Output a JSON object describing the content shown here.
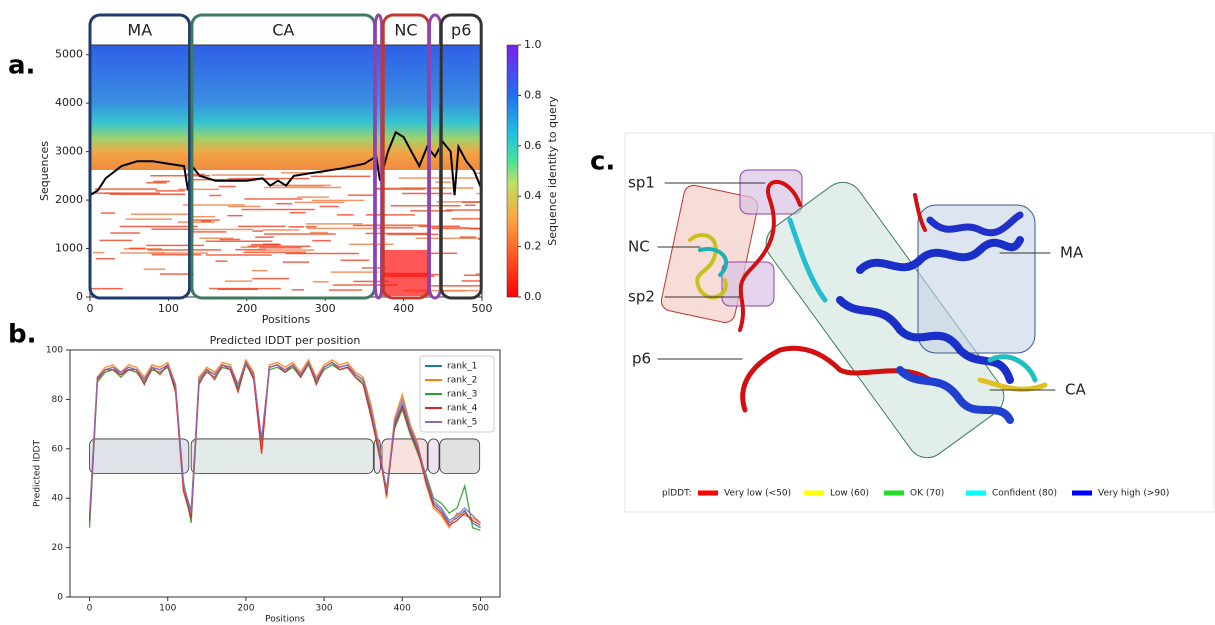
{
  "panel_labels": [
    "a.",
    "b.",
    "c."
  ],
  "chart_data": [
    {
      "type": "heatmap",
      "xlabel": "Positions",
      "ylabel": "Sequences",
      "xlim": [
        0,
        500
      ],
      "xticks": [
        0,
        100,
        200,
        300,
        400,
        500
      ],
      "ylim": [
        0,
        5200
      ],
      "yticks": [
        0,
        1000,
        2000,
        3000,
        4000,
        5000
      ],
      "colorbar": {
        "label": "Sequence identity to query",
        "lim": [
          0,
          1
        ],
        "ticks": [
          {
            "value": 0,
            "label": "0.0"
          },
          {
            "value": 0.2,
            "label": "0.2"
          },
          {
            "value": 0.4,
            "label": "0.4"
          },
          {
            "value": 0.6,
            "label": "0.6"
          },
          {
            "value": 0.8,
            "label": "0.8"
          },
          {
            "value": 1,
            "label": "1.0"
          }
        ]
      },
      "domains": [
        {
          "name": "MA",
          "start": 0,
          "end": 127,
          "color": "#1f3a6e",
          "label_color": "#6a6a9a"
        },
        {
          "name": "CA",
          "start": 130,
          "end": 363,
          "color": "#3d7a5e",
          "label_color": "#3d7a5e"
        },
        {
          "start": 364,
          "end": 372,
          "color": "#8e44ad"
        },
        {
          "name": "NC",
          "start": 374,
          "end": 432,
          "color": "#c0392b",
          "label_color": "#c0392b"
        },
        {
          "start": 433,
          "end": 447,
          "color": "#8e44ad"
        },
        {
          "name": "p6",
          "start": 448,
          "end": 499,
          "color": "#333333",
          "label_color": "#222222"
        }
      ],
      "x": [
        0,
        10,
        20,
        40,
        60,
        80,
        100,
        120,
        125,
        130,
        140,
        160,
        200,
        220,
        230,
        240,
        250,
        260,
        280,
        300,
        320,
        350,
        365,
        370,
        380,
        390,
        400,
        410,
        420,
        430,
        440,
        450,
        460,
        465,
        470,
        480,
        490,
        500
      ],
      "series": [
        {
          "color": "#000000",
          "values": [
            2100,
            2200,
            2450,
            2700,
            2800,
            2800,
            2750,
            2700,
            2200,
            2700,
            2500,
            2400,
            2400,
            2450,
            2300,
            2400,
            2300,
            2500,
            2550,
            2600,
            2650,
            2750,
            2900,
            2400,
            3000,
            3400,
            3300,
            3000,
            2700,
            3100,
            2900,
            3200,
            3000,
            2100,
            3100,
            2800,
            2600,
            2200
          ]
        }
      ]
    },
    {
      "type": "line",
      "title": "Predicted lDDT per position",
      "xlabel": "Positions",
      "ylabel": "Predicted lDDT",
      "xlim": [
        -25,
        525
      ],
      "xticks": [
        0,
        100,
        200,
        300,
        400,
        500
      ],
      "ylim": [
        0,
        100
      ],
      "yticks": [
        0,
        20,
        40,
        60,
        80,
        100
      ],
      "band": [
        50,
        64
      ],
      "legend": "upper right",
      "x": [
        0,
        10,
        20,
        30,
        40,
        50,
        60,
        70,
        80,
        90,
        100,
        110,
        120,
        130,
        140,
        150,
        160,
        170,
        180,
        190,
        200,
        210,
        220,
        230,
        240,
        250,
        260,
        270,
        280,
        290,
        300,
        310,
        320,
        330,
        340,
        350,
        360,
        370,
        380,
        390,
        400,
        410,
        420,
        430,
        440,
        450,
        460,
        470,
        480,
        490,
        500
      ],
      "series": [
        {
          "name": "rank_1",
          "color": "#1f77b4",
          "values": [
            30,
            88,
            92,
            93,
            90,
            93,
            92,
            88,
            93,
            92,
            94,
            85,
            45,
            35,
            88,
            92,
            90,
            94,
            93,
            85,
            95,
            90,
            62,
            93,
            94,
            92,
            94,
            90,
            95,
            88,
            93,
            95,
            93,
            94,
            90,
            88,
            75,
            60,
            42,
            70,
            78,
            68,
            60,
            48,
            38,
            35,
            30,
            32,
            35,
            30,
            28
          ]
        },
        {
          "name": "rank_2",
          "color": "#ff7f0e",
          "values": [
            32,
            89,
            93,
            94,
            91,
            94,
            93,
            89,
            94,
            93,
            95,
            86,
            44,
            33,
            89,
            93,
            91,
            95,
            94,
            86,
            96,
            91,
            60,
            94,
            95,
            93,
            95,
            91,
            96,
            89,
            94,
            96,
            94,
            95,
            91,
            89,
            78,
            62,
            40,
            72,
            82,
            70,
            62,
            46,
            36,
            33,
            28,
            34,
            33,
            32,
            30
          ]
        },
        {
          "name": "rank_3",
          "color": "#2ca02c",
          "values": [
            28,
            87,
            91,
            92,
            89,
            92,
            91,
            87,
            92,
            91,
            93,
            84,
            47,
            30,
            87,
            91,
            89,
            93,
            92,
            84,
            94,
            89,
            63,
            92,
            93,
            91,
            93,
            89,
            94,
            87,
            92,
            94,
            92,
            93,
            89,
            87,
            74,
            58,
            44,
            68,
            76,
            66,
            58,
            50,
            40,
            38,
            34,
            36,
            45,
            28,
            27
          ]
        },
        {
          "name": "rank_4",
          "color": "#d62728",
          "values": [
            31,
            88,
            92,
            92,
            90,
            92,
            92,
            86,
            93,
            90,
            94,
            83,
            43,
            32,
            86,
            92,
            88,
            94,
            92,
            83,
            95,
            88,
            58,
            93,
            94,
            91,
            94,
            89,
            95,
            86,
            93,
            95,
            92,
            93,
            89,
            86,
            73,
            59,
            41,
            69,
            77,
            67,
            59,
            47,
            37,
            34,
            29,
            31,
            34,
            31,
            29
          ]
        },
        {
          "name": "rank_5",
          "color": "#9467bd",
          "values": [
            33,
            89,
            92,
            93,
            91,
            93,
            92,
            88,
            93,
            92,
            94,
            86,
            46,
            34,
            88,
            92,
            90,
            94,
            93,
            86,
            95,
            90,
            64,
            93,
            94,
            92,
            94,
            90,
            95,
            88,
            93,
            95,
            93,
            94,
            90,
            88,
            76,
            61,
            43,
            71,
            80,
            69,
            61,
            49,
            39,
            36,
            31,
            33,
            36,
            33,
            30
          ]
        }
      ]
    }
  ],
  "structure": {
    "labels": [
      {
        "text": "sp1",
        "color": "#8e44ad"
      },
      {
        "text": "NC",
        "color": "#c0392b"
      },
      {
        "text": "sp2",
        "color": "#8e44ad"
      },
      {
        "text": "p6",
        "color": "#111111"
      },
      {
        "text": "MA",
        "color": "#6a7a9a"
      },
      {
        "text": "CA",
        "color": "#3d7a5e"
      }
    ],
    "legend": {
      "title": "plDDT:",
      "items": [
        {
          "label": "Very low (<50)",
          "color": "#ff0000"
        },
        {
          "label": "Low (60)",
          "color": "#ffff00"
        },
        {
          "label": "OK (70)",
          "color": "#22dd22"
        },
        {
          "label": "Confident (80)",
          "color": "#00ffff"
        },
        {
          "label": "Very high (>90)",
          "color": "#0000ff"
        }
      ]
    }
  }
}
